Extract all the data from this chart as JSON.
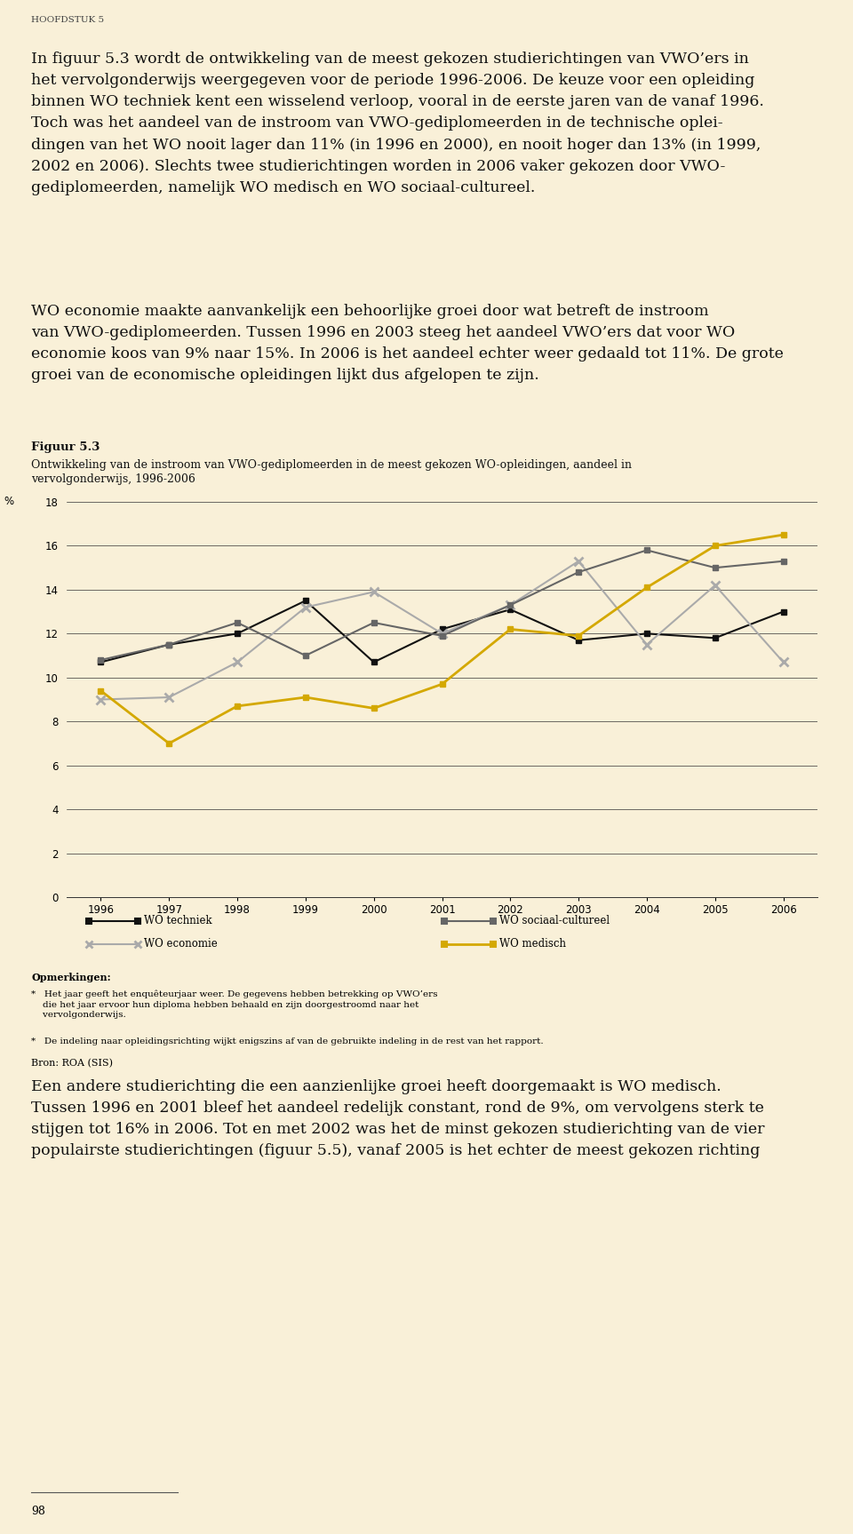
{
  "years": [
    1996,
    1997,
    1998,
    1999,
    2000,
    2001,
    2002,
    2003,
    2004,
    2005,
    2006
  ],
  "wo_techniek": [
    10.7,
    11.5,
    12.0,
    13.5,
    10.7,
    12.2,
    13.1,
    11.7,
    12.0,
    11.8,
    13.0
  ],
  "wo_economie": [
    9.0,
    9.1,
    10.7,
    13.2,
    13.9,
    12.0,
    13.3,
    15.3,
    11.5,
    14.2,
    10.7
  ],
  "wo_sociaal_cultureel": [
    10.8,
    11.5,
    12.5,
    11.0,
    12.5,
    11.9,
    13.3,
    14.8,
    15.8,
    15.0,
    15.3
  ],
  "wo_medisch": [
    9.4,
    7.0,
    8.7,
    9.1,
    8.6,
    9.7,
    12.2,
    11.9,
    14.1,
    16.0,
    16.5
  ],
  "color_techniek": "#111111",
  "color_economie": "#aaaaaa",
  "color_sociaal": "#666666",
  "color_medisch": "#d4a800",
  "bg_color": "#f9f0d8",
  "ylim": [
    0,
    18
  ],
  "yticks": [
    0,
    2,
    4,
    6,
    8,
    10,
    12,
    14,
    16,
    18
  ],
  "header": "HOOFDSTUK 5",
  "fig_title_bold": "Figuur 5.3",
  "fig_title_normal": "Ontwikkeling van de instroom van VWO-gediplomeerden in de meest gekozen WO-opleidingen, aandeel in\nvervolgonderwijs, 1996-2006",
  "legend_techniek": "WO techniek",
  "legend_economie": "WO economie",
  "legend_sociaal": "WO sociaal-cultureel",
  "legend_medisch": "WO medisch",
  "footnote_header": "Opmerkingen:",
  "footnote2": "*   Het jaar geeft het enquêteurjaar weer. De gegevens hebben betrekking op VWO’ers die het jaar ervoor hun diploma hebben behaald en zijn doorgestroomd naar het vervolgonderwijs.",
  "footnote3": "*   De indeling naar opleidingsrichting wijkt enigszins af van de gebruikte indeling in de rest van het rapport.",
  "footnote4": "Bron: ROA (SIS)",
  "page_number": "98"
}
